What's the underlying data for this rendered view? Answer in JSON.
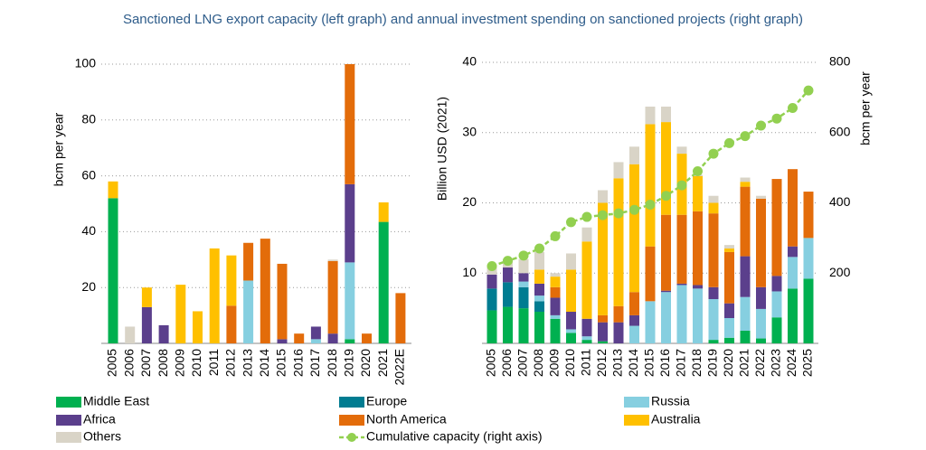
{
  "title": "Sanctioned LNG export capacity (left graph) and annual investment spending on sanctioned projects (right graph)",
  "chart_data": [
    {
      "type": "bar",
      "stacked": true,
      "y_label": "bcm per year",
      "categories": [
        "2005",
        "2006",
        "2007",
        "2008",
        "2009",
        "2010",
        "2011",
        "2012",
        "2013",
        "2014",
        "2015",
        "2016",
        "2017",
        "2018",
        "2019",
        "2020",
        "2021",
        "2022E"
      ],
      "ylim": [
        0,
        100
      ],
      "yticks": [
        20,
        40,
        60,
        80,
        100
      ],
      "grid": true,
      "series": [
        {
          "name": "Middle East",
          "color": "#00b050",
          "values": [
            52,
            0,
            0,
            0,
            0,
            0,
            0,
            0,
            0,
            0,
            0,
            0,
            0,
            0,
            1.5,
            0,
            43.5,
            0
          ]
        },
        {
          "name": "Europe",
          "color": "#007c91",
          "values": [
            0,
            0,
            0,
            0,
            0,
            0,
            0,
            0,
            0,
            0,
            0,
            0,
            0,
            0,
            0,
            0,
            0,
            0
          ]
        },
        {
          "name": "Russia",
          "color": "#86cfe0",
          "values": [
            0,
            0,
            0,
            0,
            0,
            0,
            0,
            0,
            22.5,
            0,
            0,
            0,
            1.5,
            0,
            27.5,
            0,
            0,
            0
          ]
        },
        {
          "name": "Africa",
          "color": "#5b3f8c",
          "values": [
            0,
            0,
            13,
            6.5,
            0,
            0,
            0,
            0,
            0,
            0,
            1.5,
            0,
            4.5,
            3.5,
            28,
            0,
            0,
            0
          ]
        },
        {
          "name": "North America",
          "color": "#e36c0a",
          "values": [
            0,
            0,
            0,
            0,
            0,
            0,
            0,
            13.5,
            13.5,
            37.5,
            27,
            3.5,
            0,
            26,
            43,
            3.5,
            0,
            18
          ]
        },
        {
          "name": "Australia",
          "color": "#ffc000",
          "values": [
            6,
            0,
            7,
            0,
            21,
            11.5,
            34,
            18,
            0,
            0,
            0,
            0,
            0,
            0,
            0,
            0,
            7,
            0
          ]
        },
        {
          "name": "Others",
          "color": "#d9d4c7",
          "values": [
            0,
            6,
            0,
            0,
            0,
            0,
            0,
            0,
            0,
            0,
            0,
            0,
            0,
            0.5,
            0,
            0,
            0,
            0
          ]
        }
      ]
    },
    {
      "type": "bar",
      "stacked": true,
      "y_label": "Billion USD (2021)",
      "y2_label": "bcm per year",
      "categories": [
        "2005",
        "2006",
        "2007",
        "2008",
        "2009",
        "2010",
        "2011",
        "2012",
        "2013",
        "2014",
        "2015",
        "2016",
        "2017",
        "2018",
        "2019",
        "2020",
        "2021",
        "2022",
        "2023",
        "2024",
        "2025"
      ],
      "ylim": [
        0,
        40
      ],
      "yticks": [
        10,
        20,
        30,
        40
      ],
      "y2lim": [
        0,
        800
      ],
      "y2ticks": [
        200,
        400,
        600,
        800
      ],
      "grid": true,
      "series": [
        {
          "name": "Middle East",
          "color": "#00b050",
          "values": [
            4.7,
            5.2,
            5,
            4.5,
            3.5,
            1.5,
            0.5,
            0.3,
            0,
            0,
            0,
            0,
            0,
            0,
            0.5,
            0.8,
            1.8,
            0.7,
            3.7,
            7.8,
            9.2
          ]
        },
        {
          "name": "Europe",
          "color": "#007c91",
          "values": [
            3.1,
            3.5,
            3,
            1.5,
            0,
            0,
            0,
            0,
            0,
            0,
            0,
            0,
            0,
            0,
            0,
            0,
            0,
            0,
            0,
            0,
            0
          ]
        },
        {
          "name": "Russia",
          "color": "#86cfe0",
          "values": [
            0,
            0,
            0.8,
            0.8,
            0.5,
            0.5,
            0.5,
            0,
            0,
            2.5,
            6,
            7.3,
            8.3,
            7.8,
            5.8,
            2.8,
            4.8,
            4.2,
            3.7,
            4.5,
            5.8
          ]
        },
        {
          "name": "Africa",
          "color": "#5b3f8c",
          "values": [
            2,
            2.1,
            1.2,
            1.7,
            2.5,
            2.5,
            2.5,
            2.7,
            3,
            1.5,
            0,
            0.2,
            0.2,
            0.5,
            1.7,
            2.1,
            5.8,
            3.1,
            2.2,
            1.5,
            0
          ]
        },
        {
          "name": "North America",
          "color": "#e36c0a",
          "values": [
            0,
            0,
            0,
            0,
            1.5,
            0,
            0,
            1,
            2.3,
            3.3,
            7.8,
            10.8,
            9.8,
            10.5,
            10.5,
            7.3,
            9.9,
            12.6,
            13.8,
            11,
            6.6
          ]
        },
        {
          "name": "Australia",
          "color": "#ffc000",
          "values": [
            0,
            0,
            0,
            2,
            1.5,
            6,
            11,
            16,
            18.2,
            18.2,
            17.4,
            13.2,
            8.7,
            5,
            1.5,
            0.5,
            0.7,
            0,
            0,
            0,
            0
          ]
        },
        {
          "name": "Others",
          "color": "#d9d4c7",
          "values": [
            1.2,
            1.2,
            2,
            2.5,
            0.5,
            2.3,
            2,
            1.8,
            2.3,
            2.5,
            2.5,
            2.2,
            1,
            0.2,
            1,
            0.5,
            0.6,
            0.4,
            0,
            0,
            0
          ]
        },
        {
          "name": "Cumulative capacity (right axis)",
          "type": "line",
          "axis": "y2",
          "color": "#92d050",
          "values": [
            220,
            235,
            250,
            270,
            305,
            345,
            360,
            365,
            370,
            380,
            395,
            420,
            450,
            490,
            540,
            570,
            590,
            620,
            640,
            670,
            720
          ]
        }
      ]
    }
  ]
}
